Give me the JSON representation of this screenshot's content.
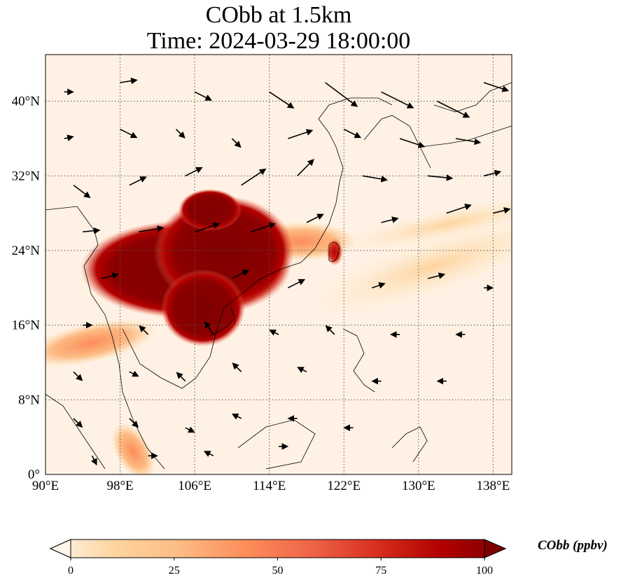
{
  "title": {
    "line1": "CObb at 1.5km",
    "line2": "Time: 2024-03-29 18:00:00"
  },
  "map": {
    "extent": {
      "lon_min": 90,
      "lon_max": 140,
      "lat_min": 0,
      "lat_max": 45
    },
    "lon_ticks": [
      {
        "value": 90,
        "label": "90°E"
      },
      {
        "value": 98,
        "label": "98°E"
      },
      {
        "value": 106,
        "label": "106°E"
      },
      {
        "value": 114,
        "label": "114°E"
      },
      {
        "value": 122,
        "label": "122°E"
      },
      {
        "value": 130,
        "label": "130°E"
      },
      {
        "value": 138,
        "label": "138°E"
      }
    ],
    "lat_ticks": [
      {
        "value": 0,
        "label": "0°"
      },
      {
        "value": 8,
        "label": "8°N"
      },
      {
        "value": 16,
        "label": "16°N"
      },
      {
        "value": 24,
        "label": "24°N"
      },
      {
        "value": 32,
        "label": "32°N"
      },
      {
        "value": 40,
        "label": "40°N"
      }
    ],
    "gridlines": "dotted",
    "plume_regions": [
      {
        "name": "indochina-south-china-core",
        "lon": 106,
        "lat": 22,
        "level": 100
      },
      {
        "name": "taiwan-spot",
        "lon": 121,
        "lat": 23.5,
        "level": 80
      },
      {
        "name": "bay-of-bengal-band",
        "lon": 96,
        "lat": 15,
        "level": 35
      },
      {
        "name": "east-outflow-band",
        "lon": 128,
        "lat": 25,
        "level": 15
      },
      {
        "name": "malay-peninsula-trace",
        "lon": 100,
        "lat": 3,
        "level": 45
      }
    ],
    "wind_vectors": [
      {
        "lon": 92,
        "lat": 41,
        "u": 1,
        "v": 0
      },
      {
        "lon": 98,
        "lat": 42,
        "u": 2,
        "v": 0.3
      },
      {
        "lon": 106,
        "lat": 41,
        "u": 2,
        "v": -1
      },
      {
        "lon": 114,
        "lat": 41,
        "u": 3,
        "v": -2
      },
      {
        "lon": 120,
        "lat": 42,
        "u": 4,
        "v": -3
      },
      {
        "lon": 126,
        "lat": 41,
        "u": 4,
        "v": -2
      },
      {
        "lon": 132,
        "lat": 40,
        "u": 4,
        "v": -2
      },
      {
        "lon": 137,
        "lat": 42,
        "u": 3,
        "v": -1
      },
      {
        "lon": 92,
        "lat": 36,
        "u": 1,
        "v": 0.2
      },
      {
        "lon": 98,
        "lat": 37,
        "u": 2,
        "v": -1
      },
      {
        "lon": 104,
        "lat": 37,
        "u": 1,
        "v": -1
      },
      {
        "lon": 110,
        "lat": 36,
        "u": 1,
        "v": -1
      },
      {
        "lon": 116,
        "lat": 36,
        "u": 3,
        "v": 1
      },
      {
        "lon": 122,
        "lat": 37,
        "u": 2,
        "v": -1
      },
      {
        "lon": 128,
        "lat": 36,
        "u": 3,
        "v": -1
      },
      {
        "lon": 134,
        "lat": 36,
        "u": 3,
        "v": -0.5
      },
      {
        "lon": 93,
        "lat": 31,
        "u": 2,
        "v": -1.5
      },
      {
        "lon": 99,
        "lat": 31,
        "u": 2,
        "v": 1
      },
      {
        "lon": 105,
        "lat": 32,
        "u": 2,
        "v": 1
      },
      {
        "lon": 111,
        "lat": 31,
        "u": 3,
        "v": 2
      },
      {
        "lon": 117,
        "lat": 32,
        "u": 2,
        "v": 2
      },
      {
        "lon": 124,
        "lat": 32,
        "u": 3,
        "v": -0.5
      },
      {
        "lon": 131,
        "lat": 32,
        "u": 3,
        "v": -0.3
      },
      {
        "lon": 137,
        "lat": 32,
        "u": 2,
        "v": 0.5
      },
      {
        "lon": 94,
        "lat": 26,
        "u": 2,
        "v": 0.2
      },
      {
        "lon": 100,
        "lat": 26,
        "u": 3,
        "v": 0.5
      },
      {
        "lon": 106,
        "lat": 26,
        "u": 3,
        "v": 1
      },
      {
        "lon": 112,
        "lat": 26,
        "u": 3,
        "v": 1
      },
      {
        "lon": 118,
        "lat": 27,
        "u": 2,
        "v": 1
      },
      {
        "lon": 126,
        "lat": 27,
        "u": 2,
        "v": 0.5
      },
      {
        "lon": 133,
        "lat": 28,
        "u": 3,
        "v": 1
      },
      {
        "lon": 138,
        "lat": 28,
        "u": 2,
        "v": 0.5
      },
      {
        "lon": 96,
        "lat": 21,
        "u": 2,
        "v": 0.5
      },
      {
        "lon": 110,
        "lat": 21,
        "u": 2,
        "v": 1
      },
      {
        "lon": 116,
        "lat": 20,
        "u": 2,
        "v": 1
      },
      {
        "lon": 125,
        "lat": 20,
        "u": 1.5,
        "v": 0.5
      },
      {
        "lon": 131,
        "lat": 21,
        "u": 2,
        "v": 0.5
      },
      {
        "lon": 137,
        "lat": 20,
        "u": 1,
        "v": 0
      },
      {
        "lon": 94,
        "lat": 16,
        "u": 1,
        "v": 0
      },
      {
        "lon": 101,
        "lat": 15,
        "u": -1,
        "v": 1
      },
      {
        "lon": 108,
        "lat": 15,
        "u": -1,
        "v": 1.5
      },
      {
        "lon": 115,
        "lat": 15,
        "u": -1,
        "v": 0.5
      },
      {
        "lon": 121,
        "lat": 15,
        "u": -1,
        "v": 1
      },
      {
        "lon": 128,
        "lat": 15,
        "u": -1,
        "v": 0
      },
      {
        "lon": 135,
        "lat": 15,
        "u": -1,
        "v": 0
      },
      {
        "lon": 93,
        "lat": 11,
        "u": 1,
        "v": -1
      },
      {
        "lon": 99,
        "lat": 11,
        "u": 1,
        "v": -0.5
      },
      {
        "lon": 105,
        "lat": 10,
        "u": -1,
        "v": 1
      },
      {
        "lon": 111,
        "lat": 11,
        "u": -1,
        "v": 1
      },
      {
        "lon": 118,
        "lat": 11,
        "u": -1,
        "v": 0.5
      },
      {
        "lon": 126,
        "lat": 10,
        "u": -1,
        "v": 0
      },
      {
        "lon": 133,
        "lat": 10,
        "u": -1,
        "v": 0
      },
      {
        "lon": 93,
        "lat": 6,
        "u": 1,
        "v": -1
      },
      {
        "lon": 99,
        "lat": 6,
        "u": 1,
        "v": -1
      },
      {
        "lon": 105,
        "lat": 5,
        "u": 1,
        "v": -0.5
      },
      {
        "lon": 111,
        "lat": 6,
        "u": -1,
        "v": 0.5
      },
      {
        "lon": 117,
        "lat": 6,
        "u": -1,
        "v": 0
      },
      {
        "lon": 123,
        "lat": 5,
        "u": -1,
        "v": 0
      },
      {
        "lon": 95,
        "lat": 2,
        "u": 0.5,
        "v": -1
      },
      {
        "lon": 101,
        "lat": 2,
        "u": 1,
        "v": 0
      },
      {
        "lon": 108,
        "lat": 2,
        "u": -1,
        "v": 0.5
      },
      {
        "lon": 115,
        "lat": 3,
        "u": 1,
        "v": 0
      }
    ]
  },
  "colorbar": {
    "label": "CObb (ppbv)",
    "min": 0,
    "max": 100,
    "extend": "both",
    "ticks": [
      {
        "value": 0,
        "label": "0"
      },
      {
        "value": 25,
        "label": "25"
      },
      {
        "value": 50,
        "label": "50"
      },
      {
        "value": 75,
        "label": "75"
      },
      {
        "value": 100,
        "label": "100"
      }
    ],
    "colors": [
      "#fff5eb",
      "#fdd49e",
      "#fdbb84",
      "#fc8d59",
      "#ef6548",
      "#d7301f",
      "#b30000",
      "#7f0000"
    ]
  }
}
